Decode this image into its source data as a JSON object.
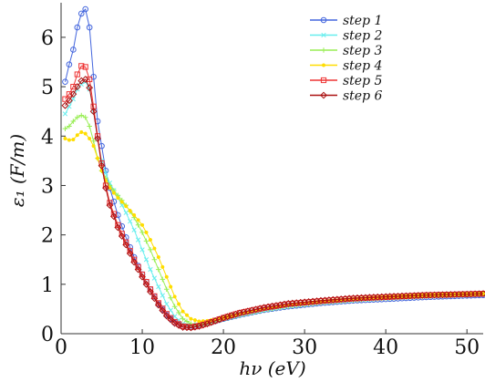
{
  "chart_data": {
    "type": "line",
    "title": "",
    "xlabel": "hν (eV)",
    "ylabel": "ε₁ (F/m)",
    "xlim": [
      0,
      52
    ],
    "ylim": [
      0,
      6.7
    ],
    "xticks": [
      0,
      10,
      20,
      30,
      40,
      50
    ],
    "yticks": [
      0,
      1,
      2,
      3,
      4,
      5,
      6
    ],
    "grid": false,
    "legend_position": "top-right",
    "series": [
      {
        "name": "step 1",
        "color": "#4466dd",
        "marker": "circle",
        "points": [
          [
            0.5,
            5.1
          ],
          [
            1,
            5.45
          ],
          [
            1.5,
            5.75
          ],
          [
            2,
            6.2
          ],
          [
            2.5,
            6.48
          ],
          [
            3,
            6.57
          ],
          [
            3.5,
            6.2
          ],
          [
            4,
            5.2
          ],
          [
            4.5,
            4.3
          ],
          [
            5,
            3.8
          ],
          [
            5.5,
            3.3
          ],
          [
            6,
            2.95
          ],
          [
            7,
            2.4
          ],
          [
            8,
            1.95
          ],
          [
            9,
            1.55
          ],
          [
            10,
            1.2
          ],
          [
            11,
            0.9
          ],
          [
            12,
            0.6
          ],
          [
            13,
            0.38
          ],
          [
            14,
            0.22
          ],
          [
            15,
            0.15
          ],
          [
            16,
            0.14
          ],
          [
            17,
            0.17
          ],
          [
            18,
            0.21
          ],
          [
            20,
            0.3
          ],
          [
            22,
            0.38
          ],
          [
            25,
            0.48
          ],
          [
            28,
            0.55
          ],
          [
            32,
            0.62
          ],
          [
            36,
            0.67
          ],
          [
            40,
            0.7
          ],
          [
            45,
            0.74
          ],
          [
            50,
            0.77
          ],
          [
            52,
            0.78
          ]
        ]
      },
      {
        "name": "step 2",
        "color": "#66eeee",
        "marker": "x",
        "points": [
          [
            0.5,
            4.45
          ],
          [
            1,
            4.6
          ],
          [
            1.5,
            4.75
          ],
          [
            2,
            4.95
          ],
          [
            2.5,
            5.05
          ],
          [
            3,
            5.1
          ],
          [
            3.5,
            4.95
          ],
          [
            4,
            4.5
          ],
          [
            4.5,
            3.95
          ],
          [
            5,
            3.5
          ],
          [
            5.5,
            3.25
          ],
          [
            6,
            3.05
          ],
          [
            7,
            2.75
          ],
          [
            8,
            2.45
          ],
          [
            9,
            2.1
          ],
          [
            10,
            1.7
          ],
          [
            11,
            1.3
          ],
          [
            12,
            0.95
          ],
          [
            13,
            0.6
          ],
          [
            14,
            0.35
          ],
          [
            15,
            0.2
          ],
          [
            16,
            0.15
          ],
          [
            17,
            0.16
          ],
          [
            18,
            0.2
          ],
          [
            20,
            0.29
          ],
          [
            22,
            0.38
          ],
          [
            25,
            0.48
          ],
          [
            28,
            0.56
          ],
          [
            32,
            0.63
          ],
          [
            36,
            0.68
          ],
          [
            40,
            0.72
          ],
          [
            45,
            0.76
          ],
          [
            50,
            0.78
          ],
          [
            52,
            0.8
          ]
        ]
      },
      {
        "name": "step 3",
        "color": "#99ee55",
        "marker": "plus",
        "points": [
          [
            0.5,
            4.15
          ],
          [
            1,
            4.2
          ],
          [
            1.5,
            4.3
          ],
          [
            2,
            4.38
          ],
          [
            2.5,
            4.42
          ],
          [
            3,
            4.38
          ],
          [
            3.5,
            4.2
          ],
          [
            4,
            3.9
          ],
          [
            4.5,
            3.55
          ],
          [
            5,
            3.3
          ],
          [
            5.5,
            3.15
          ],
          [
            6,
            3.0
          ],
          [
            7,
            2.8
          ],
          [
            8,
            2.6
          ],
          [
            9,
            2.35
          ],
          [
            10,
            2.05
          ],
          [
            11,
            1.7
          ],
          [
            12,
            1.3
          ],
          [
            13,
            0.9
          ],
          [
            14,
            0.55
          ],
          [
            15,
            0.3
          ],
          [
            16,
            0.2
          ],
          [
            17,
            0.19
          ],
          [
            18,
            0.22
          ],
          [
            20,
            0.3
          ],
          [
            22,
            0.38
          ],
          [
            25,
            0.48
          ],
          [
            28,
            0.56
          ],
          [
            32,
            0.63
          ],
          [
            36,
            0.68
          ],
          [
            40,
            0.72
          ],
          [
            45,
            0.76
          ],
          [
            50,
            0.79
          ],
          [
            52,
            0.8
          ]
        ]
      },
      {
        "name": "step 4",
        "color": "#ffdd00",
        "marker": "dot",
        "points": [
          [
            0.5,
            3.95
          ],
          [
            1,
            3.92
          ],
          [
            1.5,
            3.93
          ],
          [
            2,
            4.02
          ],
          [
            2.5,
            4.08
          ],
          [
            3,
            4.05
          ],
          [
            3.5,
            3.95
          ],
          [
            4,
            3.8
          ],
          [
            4.5,
            3.55
          ],
          [
            5,
            3.3
          ],
          [
            5.5,
            3.1
          ],
          [
            6,
            2.95
          ],
          [
            7,
            2.75
          ],
          [
            8,
            2.58
          ],
          [
            9,
            2.4
          ],
          [
            10,
            2.2
          ],
          [
            11,
            1.9
          ],
          [
            12,
            1.55
          ],
          [
            13,
            1.15
          ],
          [
            14,
            0.75
          ],
          [
            15,
            0.45
          ],
          [
            16,
            0.3
          ],
          [
            17,
            0.25
          ],
          [
            18,
            0.26
          ],
          [
            20,
            0.32
          ],
          [
            22,
            0.4
          ],
          [
            25,
            0.5
          ],
          [
            28,
            0.58
          ],
          [
            32,
            0.65
          ],
          [
            36,
            0.7
          ],
          [
            40,
            0.74
          ],
          [
            45,
            0.78
          ],
          [
            50,
            0.8
          ],
          [
            52,
            0.81
          ]
        ]
      },
      {
        "name": "step 5",
        "color": "#ee3333",
        "marker": "square",
        "points": [
          [
            0.5,
            4.75
          ],
          [
            1,
            4.85
          ],
          [
            1.5,
            5.0
          ],
          [
            2,
            5.25
          ],
          [
            2.5,
            5.42
          ],
          [
            3,
            5.4
          ],
          [
            3.5,
            5.15
          ],
          [
            4,
            4.6
          ],
          [
            4.5,
            4.0
          ],
          [
            5,
            3.45
          ],
          [
            5.5,
            3.0
          ],
          [
            6,
            2.65
          ],
          [
            7,
            2.2
          ],
          [
            8,
            1.85
          ],
          [
            9,
            1.5
          ],
          [
            10,
            1.2
          ],
          [
            11,
            0.9
          ],
          [
            12,
            0.62
          ],
          [
            13,
            0.4
          ],
          [
            14,
            0.24
          ],
          [
            15,
            0.15
          ],
          [
            16,
            0.13
          ],
          [
            17,
            0.16
          ],
          [
            18,
            0.21
          ],
          [
            20,
            0.32
          ],
          [
            22,
            0.42
          ],
          [
            25,
            0.52
          ],
          [
            28,
            0.6
          ],
          [
            32,
            0.66
          ],
          [
            36,
            0.71
          ],
          [
            40,
            0.74
          ],
          [
            45,
            0.78
          ],
          [
            50,
            0.8
          ],
          [
            52,
            0.81
          ]
        ]
      },
      {
        "name": "step 6",
        "color": "#aa1111",
        "marker": "diamond",
        "points": [
          [
            0.5,
            4.62
          ],
          [
            1,
            4.72
          ],
          [
            1.5,
            4.85
          ],
          [
            2,
            5.0
          ],
          [
            2.5,
            5.12
          ],
          [
            3,
            5.15
          ],
          [
            3.5,
            4.98
          ],
          [
            4,
            4.5
          ],
          [
            4.5,
            3.95
          ],
          [
            5,
            3.4
          ],
          [
            5.5,
            2.95
          ],
          [
            6,
            2.6
          ],
          [
            7,
            2.15
          ],
          [
            8,
            1.8
          ],
          [
            9,
            1.45
          ],
          [
            10,
            1.15
          ],
          [
            11,
            0.85
          ],
          [
            12,
            0.58
          ],
          [
            13,
            0.36
          ],
          [
            14,
            0.21
          ],
          [
            15,
            0.13
          ],
          [
            16,
            0.12
          ],
          [
            17,
            0.15
          ],
          [
            18,
            0.2
          ],
          [
            20,
            0.32
          ],
          [
            22,
            0.42
          ],
          [
            25,
            0.53
          ],
          [
            28,
            0.61
          ],
          [
            32,
            0.67
          ],
          [
            36,
            0.72
          ],
          [
            40,
            0.75
          ],
          [
            45,
            0.78
          ],
          [
            50,
            0.8
          ],
          [
            52,
            0.81
          ]
        ]
      }
    ]
  }
}
